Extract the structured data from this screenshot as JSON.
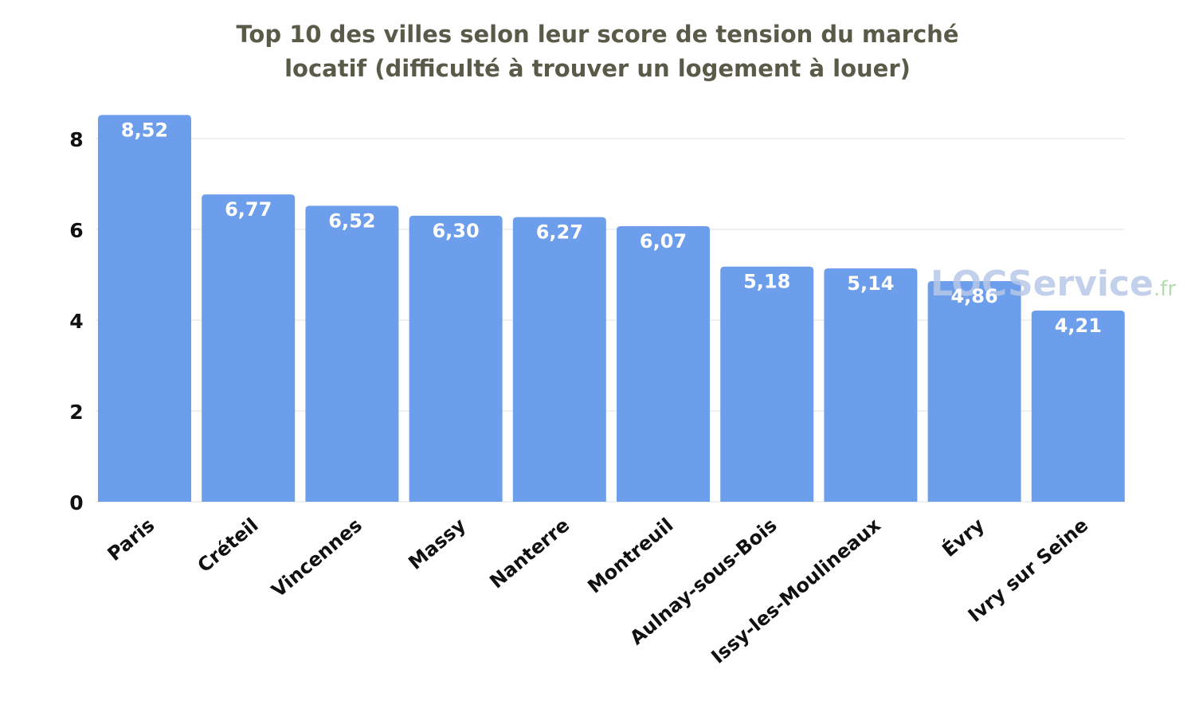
{
  "chart_data": {
    "type": "bar",
    "title_lines": [
      "Top 10 des villes selon leur score de tension du marché",
      "locatif (difficulté à trouver un logement à louer)"
    ],
    "xlabel": "",
    "ylabel": "",
    "categories": [
      "Paris",
      "Créteil",
      "Vincennes",
      "Massy",
      "Nanterre",
      "Montreuil",
      "Aulnay-sous-Bois",
      "Issy-les-Moulineaux",
      "Évry",
      "Ivry sur Seine"
    ],
    "values": [
      8.52,
      6.77,
      6.52,
      6.3,
      6.27,
      6.07,
      5.18,
      5.14,
      4.86,
      4.21
    ],
    "data_labels": [
      "8,52",
      "6,77",
      "6,52",
      "6,30",
      "6,27",
      "6,07",
      "5,18",
      "5,14",
      "4,86",
      "4,21"
    ],
    "yticks": [
      0,
      2,
      4,
      6,
      8
    ],
    "ylim": [
      0,
      8.52
    ],
    "grid": true,
    "legend": "none",
    "bar_color": "#6d9eeb",
    "label_color": "#ffffff",
    "title_color": "#5b5a48"
  },
  "watermark": {
    "text_main": "LOCService",
    "text_suffix": ".fr",
    "color_main": "#b8c8e8",
    "color_suffix": "#a8d8a0"
  }
}
